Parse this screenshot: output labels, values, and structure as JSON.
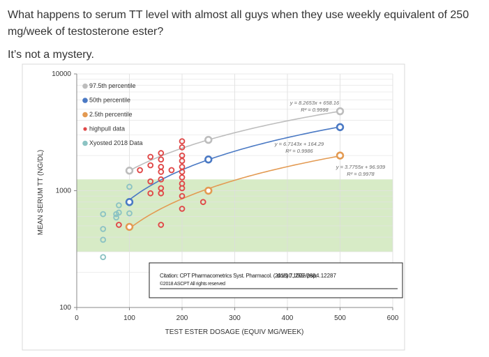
{
  "question": "What happens to serum TT level with almost all guys when they use weekly equivalent of 250 mg/week of testosterone ester?",
  "subtitle": "It’s not a mystery.",
  "colors": {
    "p97": "#bdbdbd",
    "p50": "#4a79c4",
    "p25": "#e39a52",
    "highpull": "#e04848",
    "xyosted": "#8cc3c3",
    "band": "#d7ebc6"
  },
  "chart_data": {
    "type": "scatter",
    "xlabel": "TEST ESTER DOSAGE (EQUIV MG/WEEK)",
    "ylabel": "MEAN SERUM TT (NG/DL)",
    "xlim": [
      0,
      600
    ],
    "ylim": [
      100,
      10000
    ],
    "yscale": "log",
    "x_ticks": [
      "0",
      "100",
      "200",
      "300",
      "400",
      "500",
      "600"
    ],
    "y_ticks": [
      "100",
      "1000",
      "10000"
    ],
    "normal_range_band": [
      300,
      1250
    ],
    "legend_placement": "top-left",
    "series": [
      {
        "name": "97.5th percentile",
        "color_key": "p97",
        "points": [
          [
            100,
            1485
          ],
          [
            250,
            2725
          ],
          [
            500,
            4790
          ]
        ],
        "equation": "y = 8.2653x + 658.16",
        "r2": "R² = 0.9998"
      },
      {
        "name": "50th percentile",
        "color_key": "p50",
        "points": [
          [
            100,
            800
          ],
          [
            250,
            1850
          ],
          [
            500,
            3500
          ]
        ],
        "equation": "y = 6.7143x + 164.29",
        "r2": "R² = 0.9986"
      },
      {
        "name": "2.5th percentile",
        "color_key": "p25",
        "points": [
          [
            100,
            490
          ],
          [
            250,
            1000
          ],
          [
            500,
            2000
          ]
        ],
        "equation": "y = 3.7755x + 96.939",
        "r2": "R² = 0.9978"
      },
      {
        "name": "highpull data",
        "color_key": "highpull",
        "points": [
          [
            80,
            510
          ],
          [
            120,
            1500
          ],
          [
            140,
            1200
          ],
          [
            140,
            1650
          ],
          [
            140,
            1950
          ],
          [
            140,
            950
          ],
          [
            160,
            2100
          ],
          [
            160,
            1850
          ],
          [
            160,
            1600
          ],
          [
            160,
            1450
          ],
          [
            160,
            1250
          ],
          [
            160,
            1050
          ],
          [
            160,
            950
          ],
          [
            160,
            510
          ],
          [
            180,
            1500
          ],
          [
            200,
            2650
          ],
          [
            200,
            2350
          ],
          [
            200,
            2000
          ],
          [
            200,
            1800
          ],
          [
            200,
            1600
          ],
          [
            200,
            1450
          ],
          [
            200,
            1300
          ],
          [
            200,
            1150
          ],
          [
            200,
            1050
          ],
          [
            200,
            900
          ],
          [
            200,
            700
          ],
          [
            240,
            800
          ]
        ]
      },
      {
        "name": "Xyosted 2018 Data",
        "color_key": "xyosted",
        "points": [
          [
            50,
            270
          ],
          [
            50,
            380
          ],
          [
            50,
            470
          ],
          [
            50,
            630
          ],
          [
            75,
            590
          ],
          [
            75,
            630
          ],
          [
            80,
            650
          ],
          [
            80,
            750
          ],
          [
            100,
            640
          ],
          [
            100,
            1080
          ],
          [
            100,
            780
          ]
        ]
      }
    ],
    "fit_lines": [
      {
        "series": "97.5th percentile",
        "color_key": "p97",
        "slope": 8.2653,
        "intercept": 658.16,
        "x_range": [
          100,
          500
        ]
      },
      {
        "series": "50th percentile",
        "color_key": "p50",
        "slope": 6.7143,
        "intercept": 164.29,
        "x_range": [
          100,
          500
        ]
      },
      {
        "series": "2.5th percentile",
        "color_key": "p25",
        "slope": 3.7755,
        "intercept": 96.939,
        "x_range": [
          100,
          500
        ]
      }
    ]
  },
  "citation": {
    "journal": "Citation: CPT Pharmacometrics Syst. Pharmacol. (2018) 7, 259–268;",
    "doi_label": "doi:",
    "doi": "10.1002/psp4.12287",
    "copyright": "©2018 ASCPT   All rights reserved"
  }
}
